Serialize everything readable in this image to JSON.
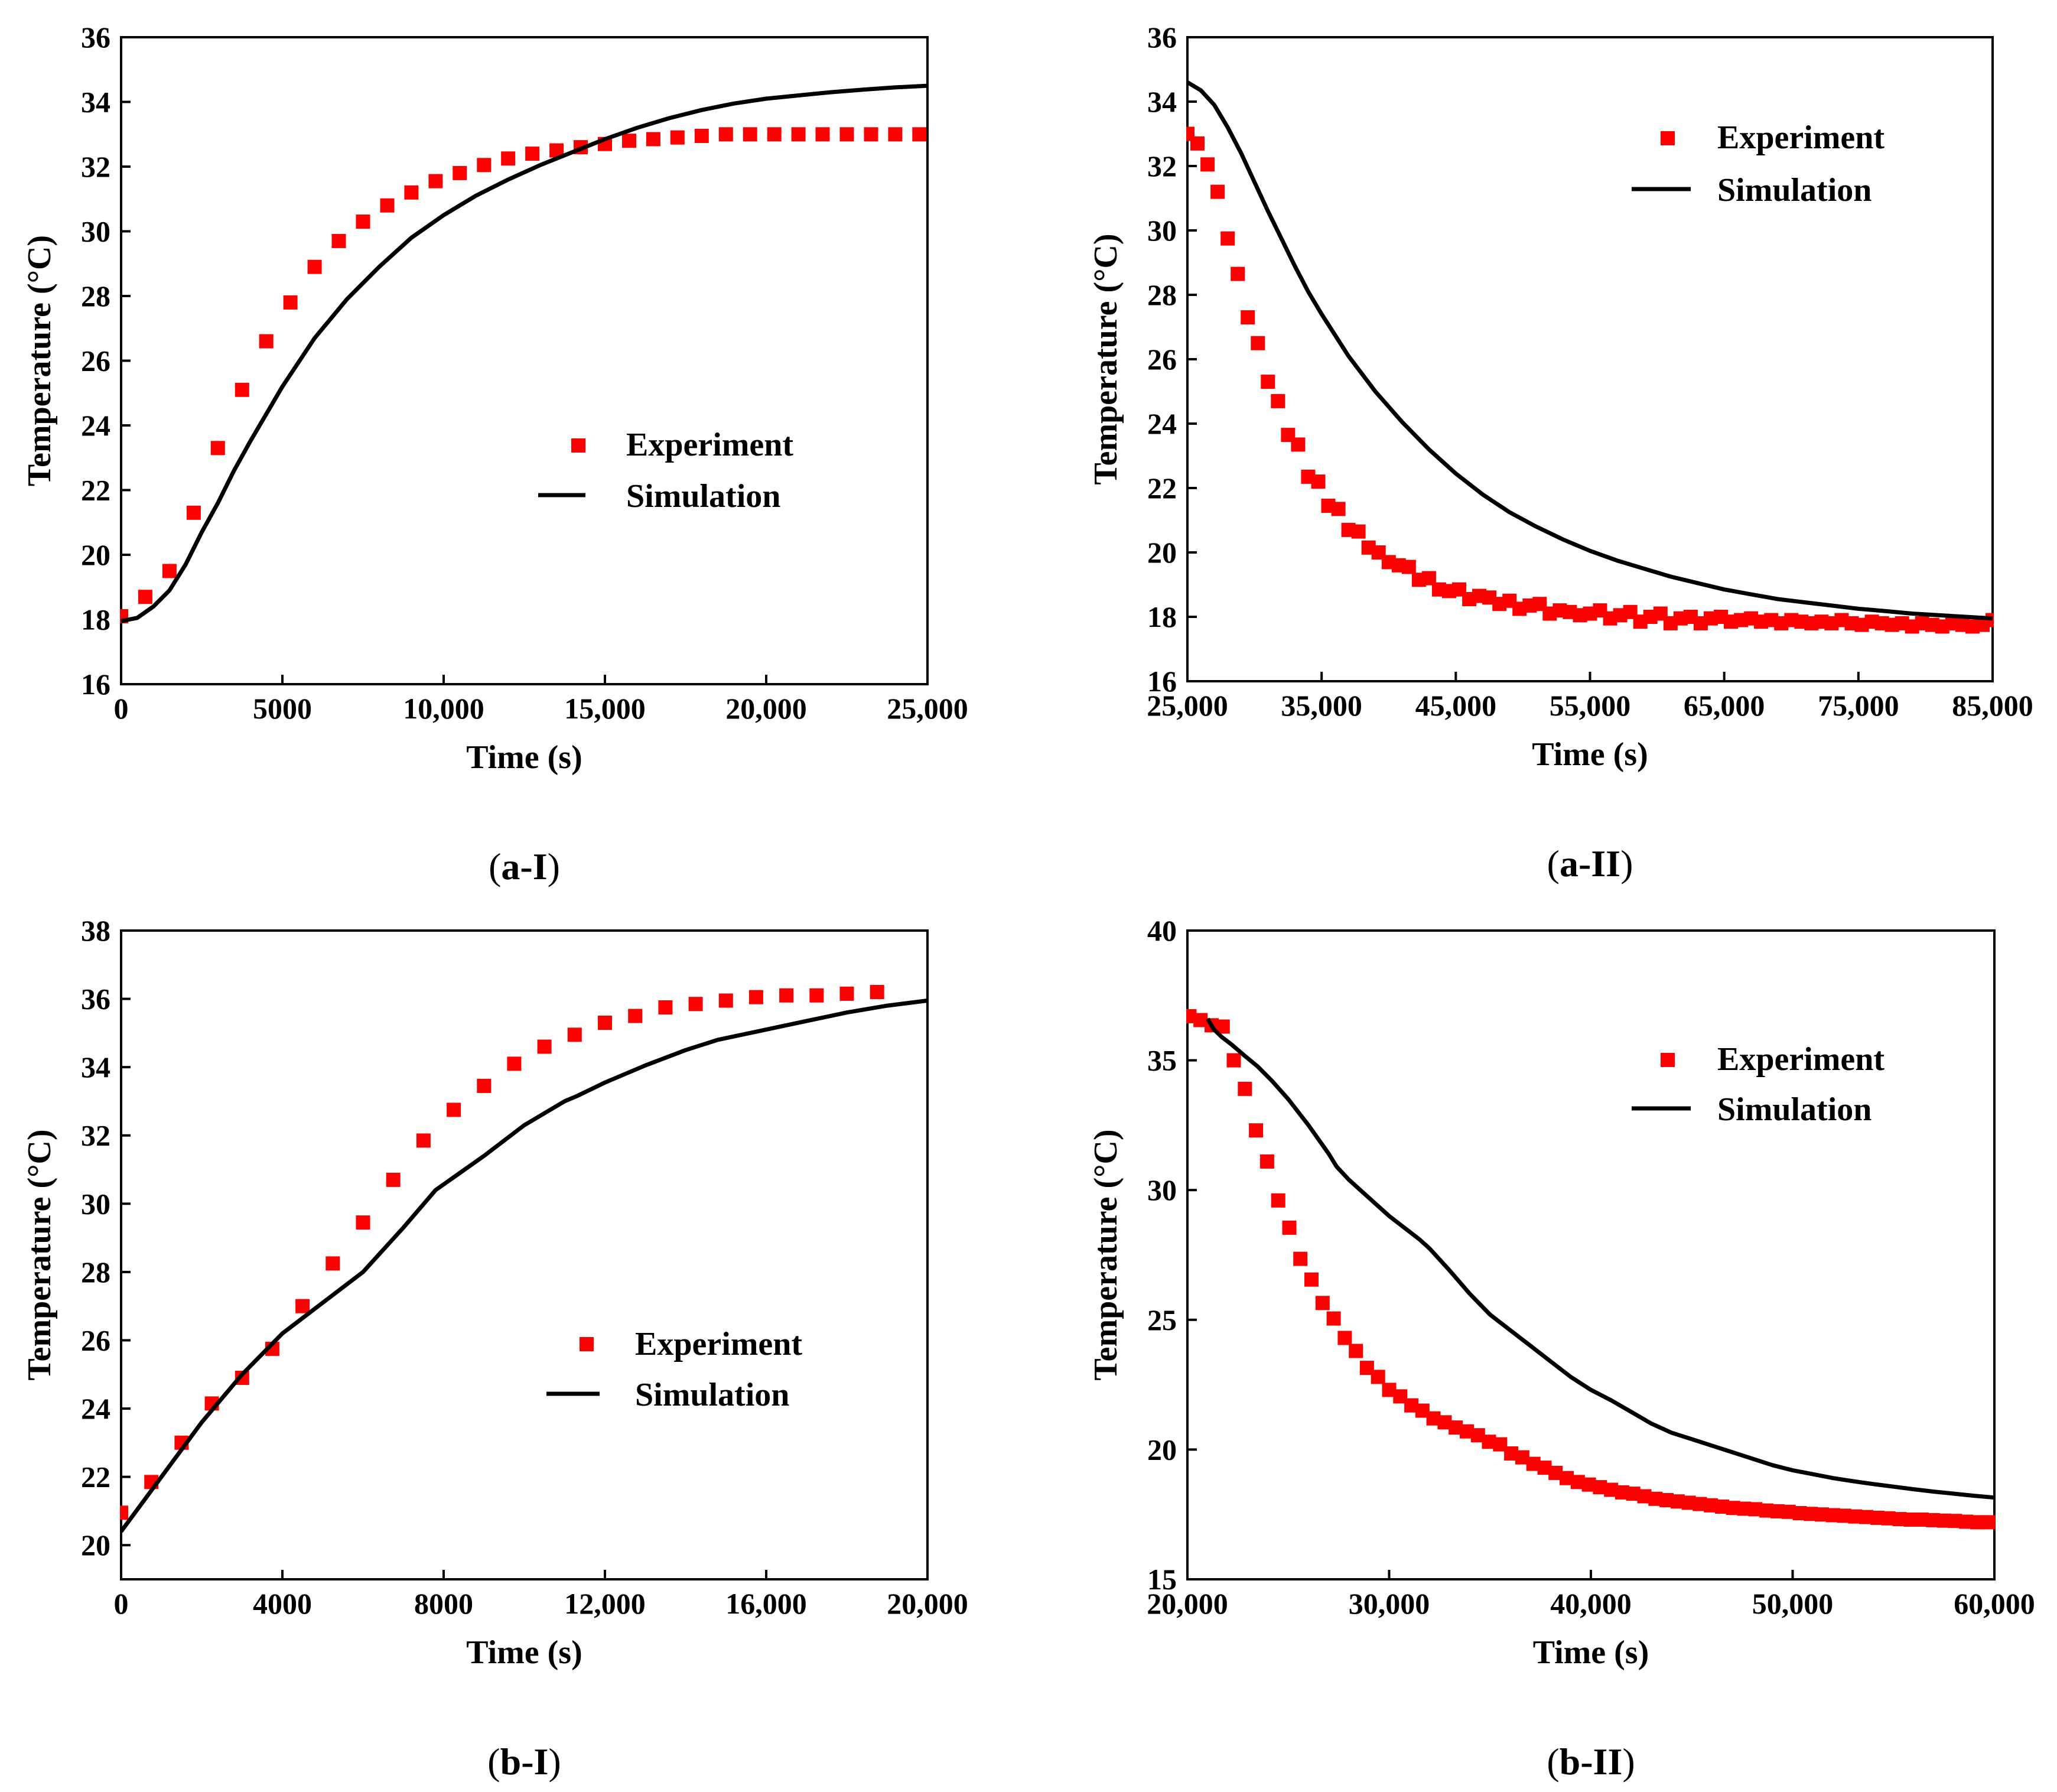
{
  "chart_data": [
    {
      "type": "scatter",
      "panel_label": {
        "open": "(",
        "main": "a-I",
        "close": ")"
      },
      "xlabel": "Time (s)",
      "ylabel": "Temperature (°C)",
      "xlim": [
        0,
        25000
      ],
      "ylim": [
        16,
        36
      ],
      "xticks": [
        0,
        5000,
        10000,
        15000,
        20000,
        25000
      ],
      "xtick_labels": [
        "0",
        "5000",
        "10,000",
        "15,000",
        "20,000",
        "25,000"
      ],
      "yticks": [
        16,
        18,
        20,
        22,
        24,
        26,
        28,
        30,
        32,
        34,
        36
      ],
      "ytick_labels": [
        "16",
        "18",
        "20",
        "22",
        "24",
        "26",
        "28",
        "30",
        "32",
        "34",
        "36"
      ],
      "legend": {
        "position": "center-right",
        "entries": [
          "Experiment",
          "Simulation"
        ]
      },
      "series": [
        {
          "name": "Experiment",
          "style": "markers",
          "x": [
            0,
            750,
            1500,
            2250,
            3000,
            3750,
            4500,
            5250,
            6000,
            6750,
            7500,
            8250,
            9000,
            9750,
            10500,
            11250,
            12000,
            12750,
            13500,
            14250,
            15000,
            15750,
            16500,
            17250,
            18000,
            18750,
            19500,
            20250,
            21000,
            21750,
            22500,
            23250,
            24000,
            24750
          ],
          "y": [
            18.1,
            18.7,
            19.5,
            21.3,
            23.3,
            25.1,
            26.6,
            27.8,
            28.9,
            29.7,
            30.3,
            30.8,
            31.2,
            31.55,
            31.8,
            32.05,
            32.25,
            32.4,
            32.5,
            32.6,
            32.7,
            32.8,
            32.85,
            32.9,
            32.95,
            33.0,
            33.0,
            33.0,
            33.0,
            33.0,
            33.0,
            33.0,
            33.0,
            33.0
          ]
        },
        {
          "name": "Simulation",
          "style": "line",
          "x": [
            0,
            500,
            1000,
            1500,
            2000,
            2500,
            3000,
            3500,
            4000,
            5000,
            6000,
            7000,
            8000,
            9000,
            10000,
            11000,
            12000,
            13000,
            14000,
            15000,
            16000,
            17000,
            18000,
            19000,
            20000,
            21000,
            22000,
            23000,
            24000,
            25000
          ],
          "y": [
            17.95,
            18.05,
            18.4,
            18.9,
            19.7,
            20.7,
            21.6,
            22.6,
            23.5,
            25.2,
            26.7,
            27.9,
            28.9,
            29.8,
            30.5,
            31.1,
            31.6,
            32.05,
            32.45,
            32.85,
            33.2,
            33.5,
            33.75,
            33.95,
            34.1,
            34.2,
            34.3,
            34.38,
            34.45,
            34.5
          ]
        }
      ]
    },
    {
      "type": "scatter",
      "panel_label": {
        "open": "(",
        "main": "a-II",
        "close": ")"
      },
      "xlabel": "Time (s)",
      "ylabel": "Temperature (°C)",
      "xlim": [
        25000,
        85000
      ],
      "ylim": [
        16,
        36
      ],
      "xticks": [
        25000,
        35000,
        45000,
        55000,
        65000,
        75000,
        85000
      ],
      "xtick_labels": [
        "25,000",
        "35,000",
        "45,000",
        "55,000",
        "65,000",
        "75,000",
        "85,000"
      ],
      "yticks": [
        16,
        18,
        20,
        22,
        24,
        26,
        28,
        30,
        32,
        34,
        36
      ],
      "ytick_labels": [
        "16",
        "18",
        "20",
        "22",
        "24",
        "26",
        "28",
        "30",
        "32",
        "34",
        "36"
      ],
      "legend": {
        "position": "top-right",
        "entries": [
          "Experiment",
          "Simulation"
        ]
      },
      "series": [
        {
          "name": "Experiment",
          "style": "markers",
          "x": [
            25000,
            25750,
            26500,
            27250,
            28000,
            28750,
            29500,
            30250,
            31000,
            31750,
            32500,
            33250,
            34000,
            34750,
            35500,
            36250,
            37000,
            37750,
            38500,
            39250,
            40000,
            40750,
            41500,
            42250,
            43000,
            43750,
            44500,
            45250,
            46000,
            46750,
            47500,
            48250,
            49000,
            49750,
            50500,
            51250,
            52000,
            52750,
            53500,
            54250,
            55000,
            55750,
            56500,
            57250,
            58000,
            58750,
            59500,
            60250,
            61000,
            61750,
            62500,
            63250,
            64000,
            64750,
            65500,
            66250,
            67000,
            67750,
            68500,
            69250,
            70000,
            70750,
            71500,
            72250,
            73000,
            73750,
            74500,
            75250,
            76000,
            76750,
            77500,
            78250,
            79000,
            79750,
            80500,
            81250,
            82000,
            82750,
            83500,
            84250,
            85000
          ],
          "y": [
            33.0,
            32.7,
            32.05,
            31.2,
            29.75,
            28.65,
            27.3,
            26.5,
            25.3,
            24.7,
            23.65,
            23.35,
            22.35,
            22.2,
            21.45,
            21.35,
            20.7,
            20.65,
            20.15,
            20.0,
            19.7,
            19.6,
            19.55,
            19.15,
            19.2,
            18.85,
            18.8,
            18.85,
            18.55,
            18.65,
            18.6,
            18.4,
            18.5,
            18.25,
            18.35,
            18.4,
            18.1,
            18.2,
            18.15,
            18.05,
            18.1,
            18.2,
            17.95,
            18.05,
            18.15,
            17.85,
            18.0,
            18.1,
            17.8,
            17.95,
            18.0,
            17.8,
            17.95,
            18.0,
            17.85,
            17.9,
            17.95,
            17.85,
            17.9,
            17.8,
            17.9,
            17.85,
            17.8,
            17.85,
            17.8,
            17.9,
            17.8,
            17.75,
            17.85,
            17.8,
            17.75,
            17.8,
            17.7,
            17.8,
            17.75,
            17.7,
            17.8,
            17.75,
            17.7,
            17.75,
            17.9
          ]
        },
        {
          "name": "Simulation",
          "style": "line",
          "x": [
            25000,
            26000,
            27000,
            28000,
            29000,
            30000,
            31000,
            32000,
            33000,
            34000,
            35000,
            37000,
            39000,
            41000,
            43000,
            45000,
            47000,
            49000,
            51000,
            53000,
            55000,
            57000,
            59000,
            61000,
            63000,
            65000,
            67000,
            69000,
            71000,
            73000,
            75000,
            77000,
            79000,
            81000,
            83000,
            85000
          ],
          "y": [
            34.6,
            34.35,
            33.9,
            33.2,
            32.4,
            31.5,
            30.6,
            29.75,
            28.9,
            28.1,
            27.4,
            26.1,
            25.0,
            24.05,
            23.2,
            22.45,
            21.8,
            21.25,
            20.8,
            20.4,
            20.05,
            19.75,
            19.5,
            19.25,
            19.05,
            18.85,
            18.7,
            18.55,
            18.45,
            18.35,
            18.25,
            18.18,
            18.1,
            18.05,
            18.0,
            17.95
          ]
        }
      ]
    },
    {
      "type": "scatter",
      "panel_label": {
        "open": "(",
        "main": "b-I",
        "close": ")"
      },
      "xlabel": "Time (s)",
      "ylabel": "Temperature (°C)",
      "xlim": [
        0,
        20000
      ],
      "ylim": [
        19,
        38
      ],
      "xticks": [
        0,
        4000,
        8000,
        12000,
        16000,
        20000
      ],
      "xtick_labels": [
        "0",
        "4000",
        "8000",
        "12,000",
        "16,000",
        "20,000"
      ],
      "yticks": [
        20,
        22,
        24,
        26,
        28,
        30,
        32,
        34,
        36,
        38
      ],
      "ytick_labels": [
        "20",
        "22",
        "24",
        "26",
        "28",
        "30",
        "32",
        "34",
        "36",
        "38"
      ],
      "legend": {
        "position": "center-right",
        "entries": [
          "Experiment",
          "Simulation"
        ]
      },
      "series": [
        {
          "name": "Experiment",
          "style": "markers",
          "x": [
            0,
            750,
            1500,
            2250,
            3000,
            3750,
            4500,
            5250,
            6000,
            6750,
            7500,
            8250,
            9000,
            9750,
            10500,
            11250,
            12000,
            12750,
            13500,
            14250,
            15000,
            15750,
            16500,
            17250,
            18000,
            18750
          ],
          "y": [
            20.95,
            21.85,
            23.0,
            24.15,
            24.9,
            25.75,
            27.0,
            28.25,
            29.45,
            30.7,
            31.85,
            32.75,
            33.45,
            34.1,
            34.6,
            34.95,
            35.3,
            35.5,
            35.75,
            35.85,
            35.95,
            36.05,
            36.1,
            36.1,
            36.15,
            36.2
          ]
        },
        {
          "name": "Simulation",
          "style": "line",
          "x": [
            0,
            1000,
            2000,
            3000,
            4000,
            5000,
            6000,
            7000,
            7800,
            9000,
            10000,
            11000,
            11300,
            12000,
            13000,
            14000,
            14800,
            16000,
            17000,
            18000,
            19000,
            20000
          ],
          "y": [
            20.4,
            22.0,
            23.6,
            25.0,
            26.2,
            27.1,
            28.0,
            29.3,
            30.4,
            31.4,
            32.3,
            33.0,
            33.15,
            33.55,
            34.05,
            34.5,
            34.8,
            35.1,
            35.35,
            35.6,
            35.8,
            35.95
          ]
        }
      ]
    },
    {
      "type": "scatter",
      "panel_label": {
        "open": "(",
        "main": "b-II",
        "close": ")"
      },
      "xlabel": "Time (s)",
      "ylabel": "Temperature (°C)",
      "xlim": [
        20000,
        60000
      ],
      "ylim": [
        15,
        40
      ],
      "xticks": [
        20000,
        30000,
        40000,
        50000,
        60000
      ],
      "xtick_labels": [
        "20,000",
        "30,000",
        "40,000",
        "50,000",
        "60,000"
      ],
      "yticks": [
        15,
        20,
        25,
        30,
        35,
        40
      ],
      "ytick_labels": [
        "15",
        "20",
        "25",
        "30",
        "35",
        "40"
      ],
      "legend": {
        "position": "top-right",
        "entries": [
          "Experiment",
          "Simulation"
        ]
      },
      "series": [
        {
          "name": "Experiment",
          "style": "markers",
          "x": [
            20100,
            20650,
            21200,
            21750,
            22300,
            22850,
            23400,
            23950,
            24500,
            25050,
            25600,
            26150,
            26700,
            27250,
            27800,
            28350,
            28900,
            29450,
            30000,
            30550,
            31100,
            31650,
            32200,
            32750,
            33300,
            33850,
            34400,
            34950,
            35500,
            36050,
            36600,
            37150,
            37700,
            38250,
            38800,
            39350,
            39900,
            40450,
            41000,
            41550,
            42100,
            42650,
            43200,
            43750,
            44300,
            44850,
            45400,
            45950,
            46500,
            47050,
            47600,
            48150,
            48700,
            49250,
            49800,
            50350,
            50900,
            51450,
            52000,
            52550,
            53100,
            53650,
            54200,
            54750,
            55300,
            55850,
            56400,
            56950,
            57500,
            58050,
            58600,
            59150,
            59700
          ],
          "y": [
            36.7,
            36.55,
            36.35,
            36.3,
            35.0,
            33.9,
            32.3,
            31.1,
            29.6,
            28.55,
            27.35,
            26.55,
            25.65,
            25.05,
            24.3,
            23.8,
            23.15,
            22.8,
            22.3,
            22.05,
            21.7,
            21.5,
            21.2,
            21.05,
            20.85,
            20.7,
            20.55,
            20.3,
            20.2,
            19.85,
            19.7,
            19.45,
            19.3,
            19.1,
            18.9,
            18.75,
            18.65,
            18.55,
            18.45,
            18.35,
            18.3,
            18.2,
            18.1,
            18.05,
            18.0,
            17.95,
            17.9,
            17.85,
            17.8,
            17.75,
            17.72,
            17.7,
            17.65,
            17.62,
            17.6,
            17.55,
            17.52,
            17.5,
            17.47,
            17.45,
            17.42,
            17.4,
            17.37,
            17.35,
            17.32,
            17.3,
            17.3,
            17.28,
            17.26,
            17.25,
            17.22,
            17.2,
            17.2
          ]
        },
        {
          "name": "Simulation",
          "style": "line",
          "x": [
            21000,
            21300,
            21700,
            22200,
            22800,
            23500,
            24200,
            25000,
            26000,
            27000,
            27400,
            28000,
            29000,
            30000,
            31000,
            31500,
            32000,
            33000,
            34000,
            35000,
            35500,
            36000,
            37000,
            38000,
            39000,
            40000,
            41000,
            42000,
            43000,
            44000,
            45000,
            46000,
            47000,
            48000,
            49000,
            50000,
            51000,
            52000,
            53000,
            54000,
            55000,
            56000,
            57000,
            58000,
            59000,
            60000
          ],
          "y": [
            36.6,
            36.2,
            35.9,
            35.6,
            35.2,
            34.75,
            34.2,
            33.5,
            32.5,
            31.4,
            30.9,
            30.4,
            29.7,
            29.0,
            28.4,
            28.1,
            27.75,
            26.9,
            26.0,
            25.2,
            24.9,
            24.6,
            24.0,
            23.4,
            22.8,
            22.3,
            21.9,
            21.45,
            21.0,
            20.65,
            20.4,
            20.15,
            19.9,
            19.65,
            19.4,
            19.2,
            19.05,
            18.9,
            18.78,
            18.67,
            18.57,
            18.47,
            18.38,
            18.3,
            18.22,
            18.15
          ]
        }
      ]
    }
  ]
}
